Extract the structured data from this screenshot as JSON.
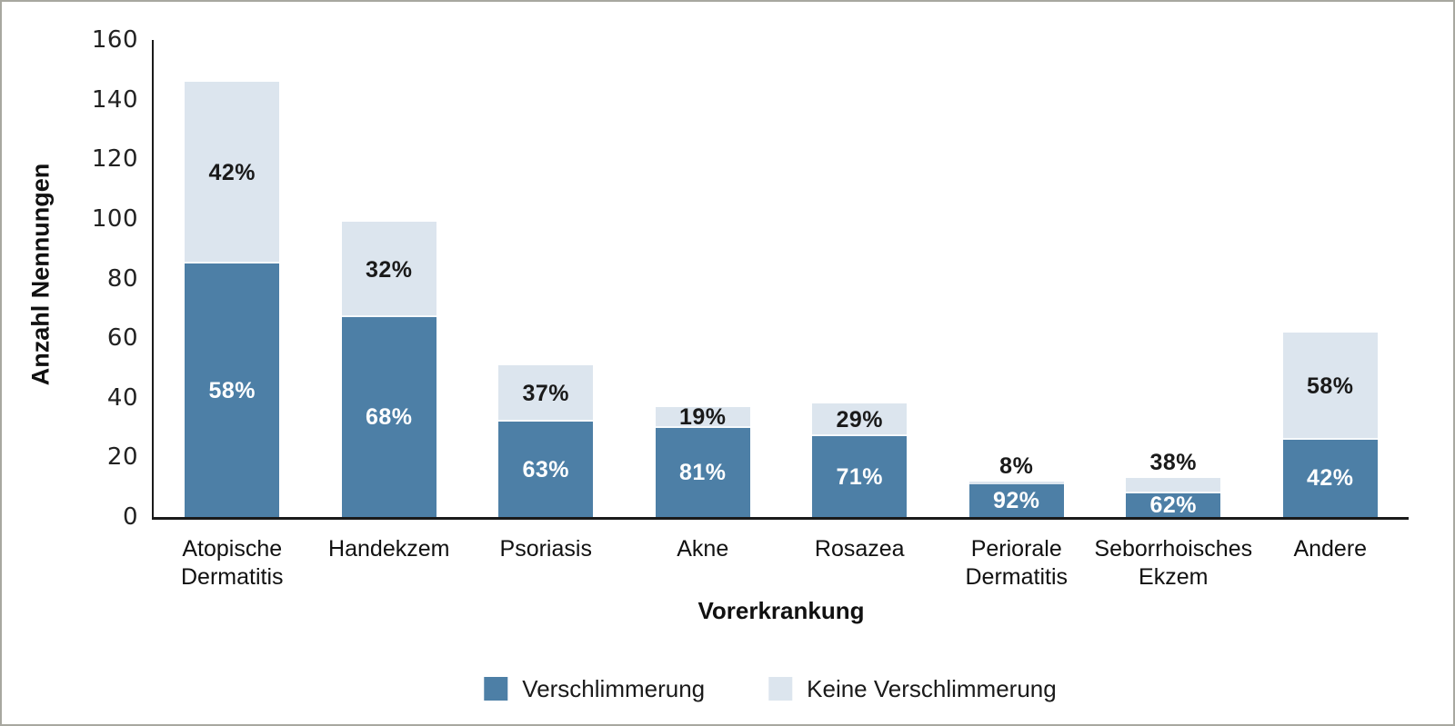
{
  "chart_data": {
    "type": "bar",
    "stacked": true,
    "orientation": "vertical",
    "xlabel": "Vorerkrankung",
    "ylabel": "Anzahl Nennungen",
    "ylim": [
      0,
      160
    ],
    "yticks": [
      0,
      20,
      40,
      60,
      80,
      100,
      120,
      140,
      160
    ],
    "grid": false,
    "legend_position": "bottom-center",
    "categories": [
      "Atopische\nDermatitis",
      "Handekzem",
      "Psoriasis",
      "Akne",
      "Rosazea",
      "Periorale\nDermatitis",
      "Seborrhoisches\nEkzem",
      "Andere"
    ],
    "series": [
      {
        "name": "Verschlimmerung",
        "color": "#4d7fa6",
        "label_color": "#ffffff",
        "values": [
          85,
          67,
          32,
          30,
          27,
          11,
          8,
          26
        ],
        "segment_labels": [
          "58%",
          "68%",
          "63%",
          "81%",
          "71%",
          "92%",
          "62%",
          "42%"
        ]
      },
      {
        "name": "Keine Verschlimmerung",
        "color": "#dce5ee",
        "label_color": "#1a1a1a",
        "values": [
          61,
          32,
          19,
          7,
          11,
          1,
          5,
          36
        ],
        "segment_labels": [
          "42%",
          "32%",
          "37%",
          "19%",
          "29%",
          "8%",
          "38%",
          "58%"
        ]
      }
    ]
  }
}
